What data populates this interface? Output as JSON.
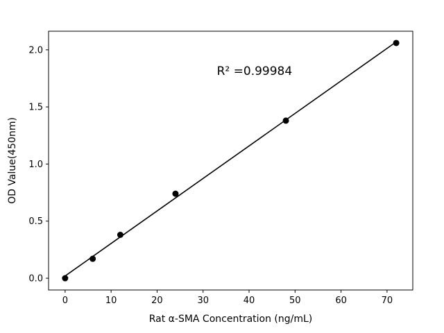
{
  "chart_data": {
    "type": "scatter",
    "x": [
      0,
      6,
      12,
      24,
      48,
      72
    ],
    "y": [
      0.0,
      0.17,
      0.38,
      0.74,
      1.38,
      2.06
    ],
    "title": "",
    "xlabel": "Rat α-SMA Concentration (ng/mL)",
    "ylabel": "OD Value(450nm)",
    "annotation": "R² =0.99984",
    "annotation_pos": {
      "x": 33,
      "y": 1.78
    },
    "xlim": [
      -3.6,
      75.6
    ],
    "ylim": [
      -0.103,
      2.163
    ],
    "xticks": [
      0,
      10,
      20,
      30,
      40,
      50,
      60,
      70
    ],
    "yticks": [
      0.0,
      0.5,
      1.0,
      1.5,
      2.0
    ],
    "fit_line": true,
    "marker_color": "#000000",
    "line_color": "#000000",
    "axis_color": "#000000",
    "background_color": "#ffffff",
    "grid": false,
    "legend_position": "none"
  }
}
